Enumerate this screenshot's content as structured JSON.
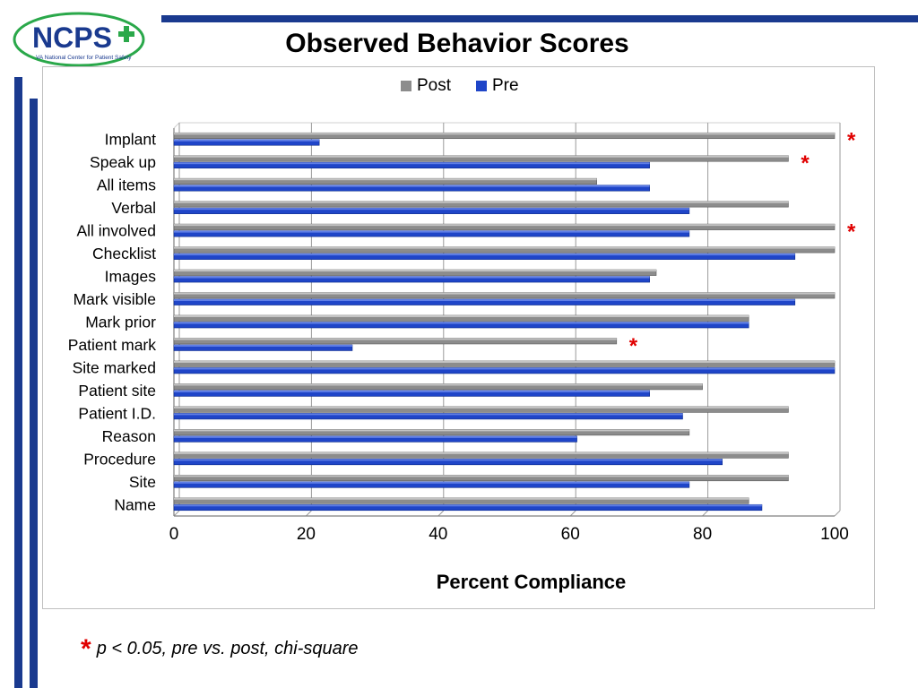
{
  "slide": {
    "title": "Observed Behavior Scores",
    "logo_text": "NCPS",
    "logo_subtitle": "VA National Center for Patient Safety",
    "footnote_symbol": "*",
    "footnote_text": "p < 0.05, pre vs. post, chi-square"
  },
  "colors": {
    "brand_navy": "#1a3a8f",
    "post_bar": "#8c8c8c",
    "pre_bar": "#1f45c8",
    "significance_star": "#e00000",
    "logo_green": "#2aa84a"
  },
  "chart_data": {
    "type": "bar",
    "orientation": "horizontal",
    "title": "",
    "xlabel": "Percent Compliance",
    "ylabel": "",
    "xlim": [
      0,
      100
    ],
    "xticks": [
      0,
      20,
      40,
      60,
      80,
      100
    ],
    "grid": true,
    "legend_position": "top",
    "categories": [
      "Implant",
      "Speak up",
      "All items",
      "Verbal",
      "All involved",
      "Checklist",
      "Images",
      "Mark visible",
      "Mark prior ",
      "Patient mark",
      "Site marked",
      "Patient site",
      "Patient I.D.",
      "Reason",
      "Procedure",
      "Site",
      "Name"
    ],
    "series": [
      {
        "name": "Post",
        "values": [
          100,
          93,
          64,
          93,
          100,
          100,
          73,
          100,
          87,
          67,
          100,
          80,
          93,
          78,
          93,
          93,
          87
        ]
      },
      {
        "name": "Pre",
        "values": [
          22,
          72,
          72,
          78,
          78,
          94,
          72,
          94,
          87,
          27,
          100,
          72,
          77,
          61,
          83,
          78,
          89
        ]
      }
    ],
    "significant": [
      "Implant",
      "Speak up",
      "All involved",
      "Patient mark"
    ],
    "significance_marker": "*"
  }
}
